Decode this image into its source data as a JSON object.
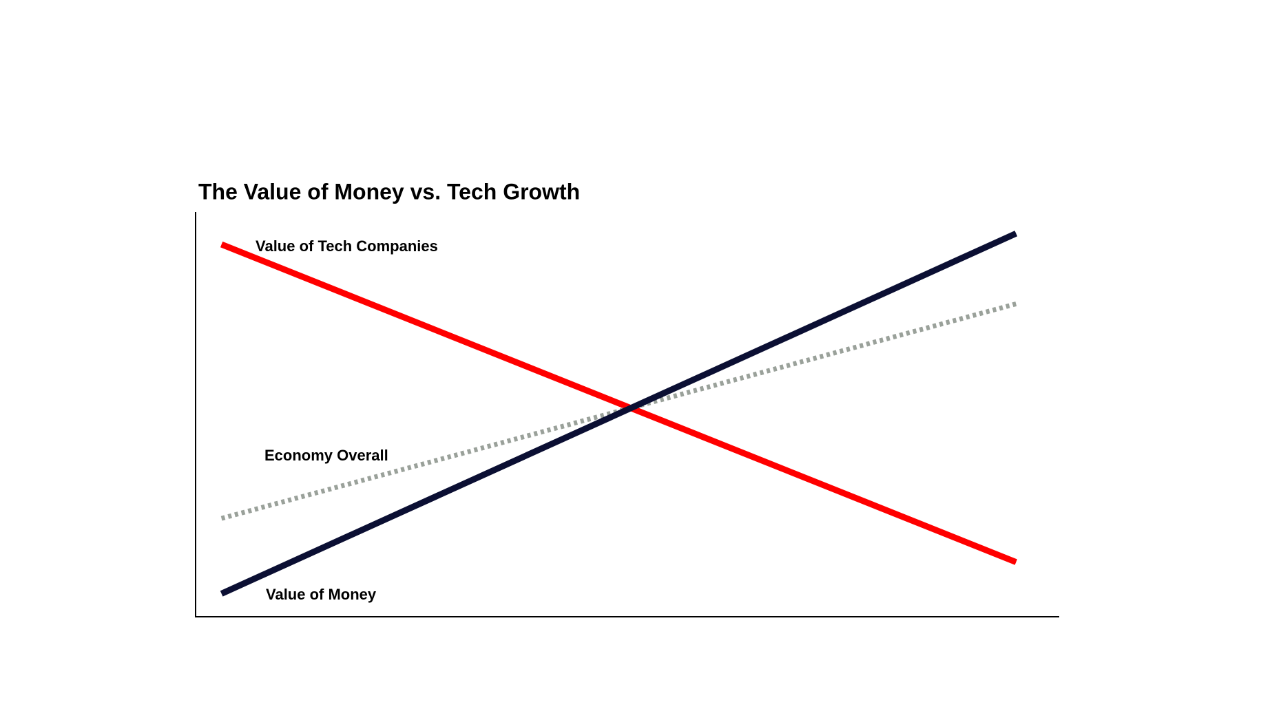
{
  "chart_data": {
    "type": "line",
    "title": "The Value of Money vs. Tech Growth",
    "x": [
      3,
      95
    ],
    "xlim": [
      0,
      100
    ],
    "ylim": [
      0,
      100
    ],
    "grid": false,
    "series": [
      {
        "name": "Value of Tech Companies",
        "color": "#ff0000",
        "style": "solid",
        "values": [
          92,
          13.5
        ]
      },
      {
        "name": "Economy Overall",
        "color": "#9aa19a",
        "style": "dotted",
        "values": [
          24.3,
          77.3
        ]
      },
      {
        "name": "Value of Money",
        "color": "#0b0f33",
        "style": "solid",
        "values": [
          5.7,
          94.7
        ]
      }
    ]
  }
}
